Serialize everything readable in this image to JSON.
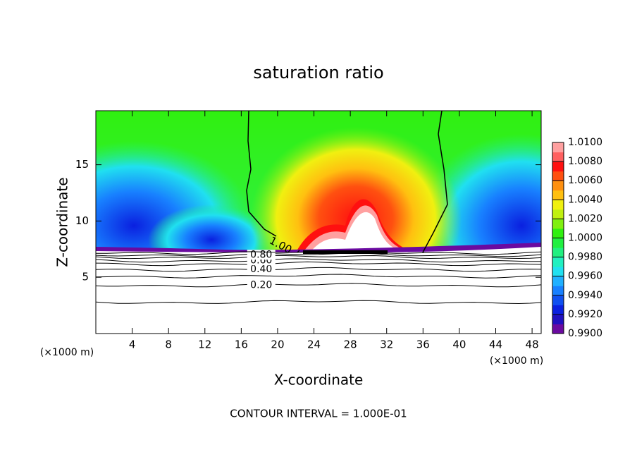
{
  "chart_data": {
    "type": "contour",
    "title": "saturation ratio",
    "xlabel": "X-coordinate",
    "ylabel": "Z-coordinate",
    "xunit": "(×1000 m)",
    "xunit2": "(×1000 m)",
    "footer": "CONTOUR INTERVAL = 1.000E-01",
    "xlim": [
      0,
      49
    ],
    "xticks": [
      4,
      8,
      12,
      16,
      20,
      24,
      28,
      32,
      36,
      40,
      44,
      48
    ],
    "ylim": [
      0,
      19.8
    ],
    "yticks": [
      5,
      10,
      15
    ],
    "contours": [
      {
        "level": 0.1,
        "z": 2.8
      },
      {
        "level": 0.2,
        "z": 4.3,
        "label": "0.20"
      },
      {
        "level": 0.3,
        "z": 5.1
      },
      {
        "level": 0.4,
        "z": 5.7,
        "label": "0.40"
      },
      {
        "level": 0.5,
        "z": 6.2
      },
      {
        "level": 0.6,
        "z": 6.5,
        "label": "0.60"
      },
      {
        "level": 0.7,
        "z": 6.8
      },
      {
        "level": 0.8,
        "z": 7.0,
        "label": "0.80"
      },
      {
        "level": 0.9,
        "z": 7.2
      }
    ],
    "top_contour_label": {
      "value": 1.0,
      "label": "1.00"
    },
    "colorbar": {
      "clim": [
        0.99,
        1.01
      ],
      "ticks": [
        {
          "value": 0.99,
          "label": "0.9900"
        },
        {
          "value": 0.992,
          "label": "0.9920"
        },
        {
          "value": 0.994,
          "label": "0.9940"
        },
        {
          "value": 0.996,
          "label": "0.9960"
        },
        {
          "value": 0.998,
          "label": "0.9980"
        },
        {
          "value": 1.0,
          "label": "1.0000"
        },
        {
          "value": 1.002,
          "label": "1.0020"
        },
        {
          "value": 1.004,
          "label": "1.0040"
        },
        {
          "value": 1.006,
          "label": "1.0060"
        },
        {
          "value": 1.008,
          "label": "1.0080"
        },
        {
          "value": 1.01,
          "label": "1.0100"
        }
      ],
      "colors": [
        "#6a0aa0",
        "#2010c0",
        "#0a20e0",
        "#1050f0",
        "#1880ff",
        "#20b0ff",
        "#20e0f0",
        "#20f0c0",
        "#20f080",
        "#20f040",
        "#30f010",
        "#80f010",
        "#c0f010",
        "#f0f010",
        "#ffc010",
        "#ff9010",
        "#ff5010",
        "#ff1010",
        "#ff6060",
        "#ffa0a0"
      ]
    }
  }
}
